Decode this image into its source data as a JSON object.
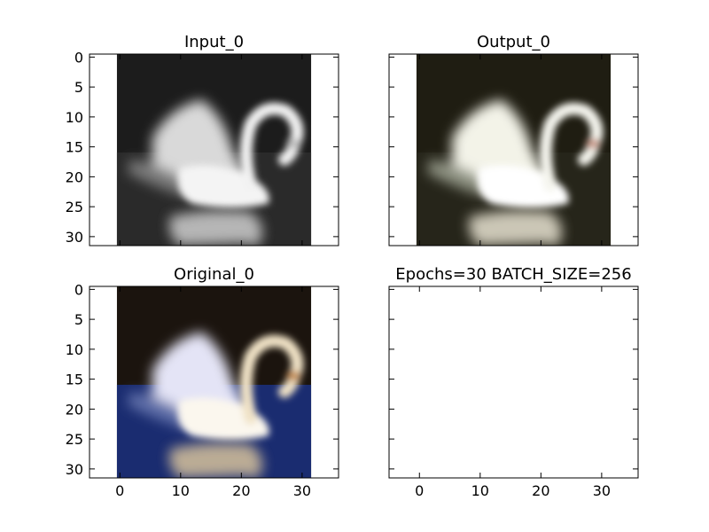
{
  "chart_data": [
    {
      "type": "image",
      "title": "Input_0",
      "image_description": "grayscale swan",
      "xlim": [
        -5,
        36
      ],
      "ylim": [
        31.5,
        -0.5
      ],
      "yticks": [
        0,
        5,
        10,
        15,
        20,
        25,
        30
      ],
      "xticks": [],
      "image_extent": [
        -0.5,
        31.5,
        31.5,
        -0.5
      ]
    },
    {
      "type": "image",
      "title": "Output_0",
      "image_description": "colorized swan reconstruction",
      "xlim": [
        -5,
        36
      ],
      "ylim": [
        31.5,
        -0.5
      ],
      "yticks": [],
      "xticks": [],
      "image_extent": [
        -0.5,
        31.5,
        31.5,
        -0.5
      ]
    },
    {
      "type": "image",
      "title": "Original_0",
      "image_description": "color swan on blue water",
      "xlim": [
        -5,
        36
      ],
      "ylim": [
        31.5,
        -0.5
      ],
      "yticks": [
        0,
        5,
        10,
        15,
        20,
        25,
        30
      ],
      "xticks": [
        0,
        10,
        20,
        30
      ],
      "image_extent": [
        -0.5,
        31.5,
        31.5,
        -0.5
      ]
    },
    {
      "type": "empty",
      "title": "Epochs=30 BATCH_SIZE=256",
      "xlim": [
        -5,
        36
      ],
      "ylim": [
        31.5,
        -0.5
      ],
      "yticks": [],
      "xticks": [
        0,
        10,
        20,
        30
      ]
    }
  ]
}
